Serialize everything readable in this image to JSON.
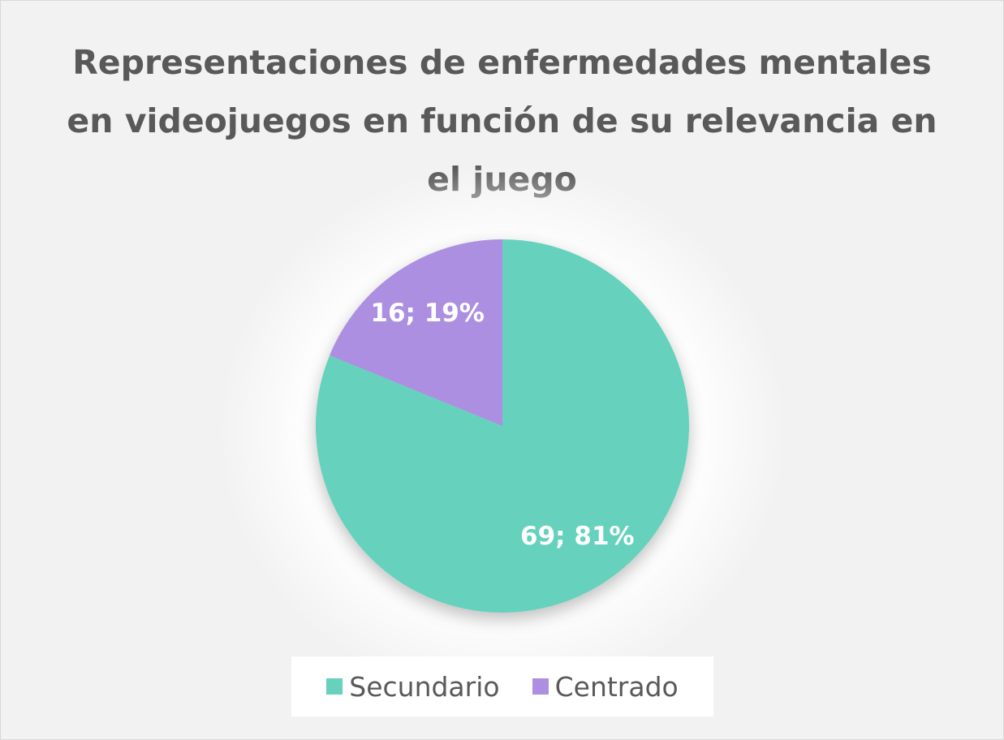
{
  "chart_data": {
    "type": "pie",
    "title": "Representaciones de enfermedades mentales en videojuegos en función de su relevancia en el juego",
    "categories": [
      "Secundario",
      "Centrado"
    ],
    "values": [
      69,
      16
    ],
    "percentages": [
      "81%",
      "19%"
    ],
    "data_labels": [
      "69; 81%",
      "16; 19%"
    ],
    "colors": [
      "#66d1bc",
      "#ac8fe1"
    ],
    "legend_position": "bottom",
    "start_angle_deg": 0,
    "direction": "clockwise"
  }
}
